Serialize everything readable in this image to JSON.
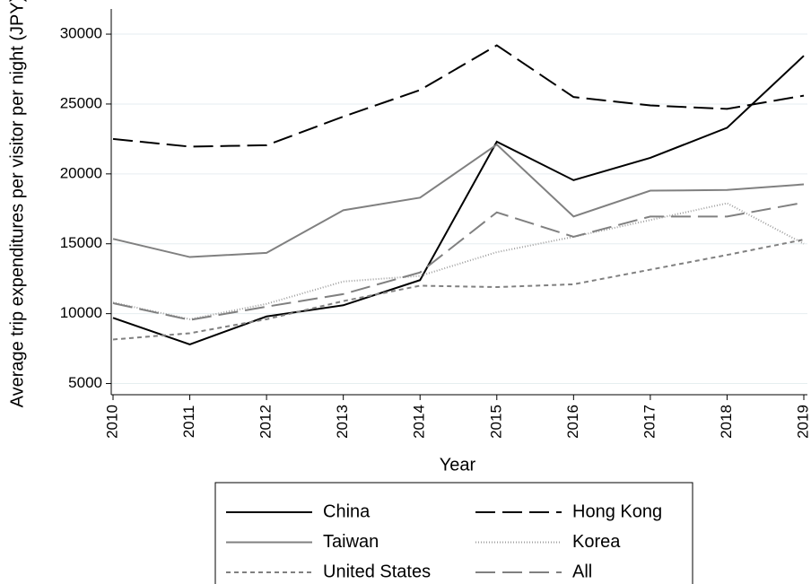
{
  "chart_data": {
    "type": "line",
    "x_label": "Year",
    "y_label": "Average trip expenditures per visitor per night (JPY)",
    "x": [
      2010,
      2011,
      2012,
      2013,
      2014,
      2015,
      2016,
      2017,
      2018,
      2019
    ],
    "xlim": [
      2010,
      2019
    ],
    "xticks": [
      2010,
      2011,
      2012,
      2013,
      2014,
      2015,
      2016,
      2017,
      2018,
      2019
    ],
    "ylim": [
      4200,
      31800
    ],
    "yticks": [
      5000,
      10000,
      15000,
      20000,
      25000,
      30000
    ],
    "grid": true,
    "legend": "bottom",
    "series": [
      {
        "name": "China",
        "color": "#000000",
        "dash": "none",
        "values": [
          9700,
          7800,
          9800,
          10600,
          12400,
          22300,
          19550,
          21150,
          23300,
          28450
        ]
      },
      {
        "name": "Hong Kong",
        "color": "#000000",
        "dash": "22 8",
        "values": [
          22500,
          21950,
          22050,
          24100,
          26000,
          29200,
          25500,
          24900,
          24650,
          25600
        ]
      },
      {
        "name": "Taiwan",
        "color": "#808080",
        "dash": "none",
        "values": [
          15350,
          14050,
          14350,
          17400,
          18300,
          22100,
          16950,
          18800,
          18850,
          19250
        ]
      },
      {
        "name": "Korea",
        "color": "#a0a0a0",
        "dash": "1 2",
        "values": [
          10800,
          9600,
          10700,
          12300,
          12700,
          14400,
          15500,
          16700,
          17900,
          15000
        ]
      },
      {
        "name": "United States",
        "color": "#808080",
        "dash": "5 4",
        "values": [
          8150,
          8600,
          9600,
          10900,
          12000,
          11900,
          12100,
          13150,
          14200,
          15300
        ]
      },
      {
        "name": "All",
        "color": "#808080",
        "dash": "22 8",
        "values": [
          10750,
          9550,
          10500,
          11400,
          12950,
          17250,
          15500,
          16950,
          16950,
          17950
        ]
      }
    ]
  }
}
